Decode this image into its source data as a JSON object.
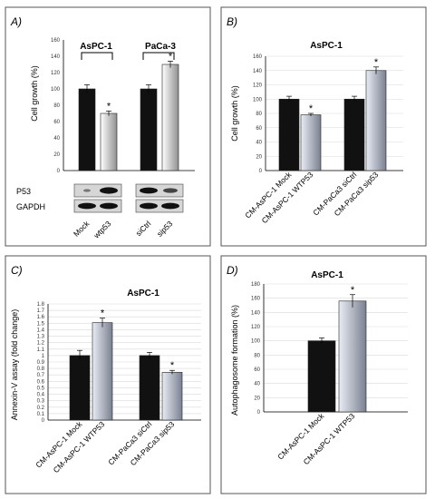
{
  "panels": {
    "a": {
      "label": "A)"
    },
    "b": {
      "label": "B)"
    },
    "c": {
      "label": "C)"
    },
    "d": {
      "label": "D)"
    }
  },
  "chart_data": [
    {
      "type": "bar",
      "panel": "A)",
      "ylabel": "Cell growth (%)",
      "ylim": [
        0,
        160
      ],
      "yticks": [
        0,
        20,
        40,
        60,
        80,
        100,
        120,
        140,
        160
      ],
      "groups": [
        {
          "label": "AsPC-1"
        },
        {
          "label": "PaCa-3"
        }
      ],
      "categories": [
        "Mock",
        "wtp53",
        "siCtrl",
        "sip53"
      ],
      "values": [
        100,
        70,
        100,
        130
      ],
      "errors": [
        5,
        3,
        5,
        4
      ],
      "significance": [
        "",
        "*",
        "",
        "*"
      ],
      "bar_colors": [
        "#111111",
        "gradient",
        "#111111",
        "gradient"
      ],
      "blot_labels": [
        "P53",
        "GAPDH"
      ],
      "grid": false
    },
    {
      "type": "bar",
      "panel": "B)",
      "title": "AsPC-1",
      "ylabel": "Cell growth (%)",
      "ylim": [
        0,
        160
      ],
      "yticks": [
        0,
        20,
        40,
        60,
        80,
        100,
        120,
        140,
        160
      ],
      "categories": [
        "CM-AsPC-1 Mock",
        "CM-AsPC-1 WTP53",
        "CM-PaCa3 siCtrl",
        "CM-PaCa3 sip53"
      ],
      "values": [
        100,
        78,
        100,
        140
      ],
      "errors": [
        4,
        2,
        4,
        5
      ],
      "significance": [
        "",
        "*",
        "",
        "*"
      ],
      "bar_colors": [
        "#111111",
        "gradient",
        "#111111",
        "gradient"
      ],
      "grid": true
    },
    {
      "type": "bar",
      "panel": "C)",
      "title": "AsPC-1",
      "ylabel": "Annexin-V assay (fold change)",
      "ylim": [
        0,
        1.8
      ],
      "yticks": [
        0,
        0.1,
        0.2,
        0.3,
        0.4,
        0.5,
        0.6,
        0.7,
        0.8,
        0.9,
        1,
        1.1,
        1.2,
        1.3,
        1.4,
        1.5,
        1.6,
        1.7,
        1.8
      ],
      "ytick_labels": [
        "0",
        "0.1",
        "0.2",
        "0.3",
        "0.4",
        "0.5",
        "0.6",
        "0.7",
        "0.8",
        "0.9",
        "1",
        "1.1",
        "1.2",
        "1.3",
        "1.4",
        "1.5",
        "1.6",
        "1.7",
        "1.8"
      ],
      "categories": [
        "CM-AsPC-1 Mock",
        "CM-AsPC-1 WTP53",
        "CM-PaCa3 siCtrl",
        "CM-PaCa3 sip53"
      ],
      "values": [
        1.0,
        1.51,
        1.0,
        0.74
      ],
      "errors": [
        0.08,
        0.07,
        0.05,
        0.03
      ],
      "significance": [
        "",
        "*",
        "",
        "*"
      ],
      "bar_colors": [
        "#111111",
        "gradient",
        "#111111",
        "gradient"
      ],
      "grid": true
    },
    {
      "type": "bar",
      "panel": "D)",
      "title": "AsPC-1",
      "ylabel": "Autophagosome formation (%)",
      "ylim": [
        0,
        180
      ],
      "yticks": [
        0,
        20,
        40,
        60,
        80,
        100,
        120,
        140,
        160,
        180
      ],
      "categories": [
        "CM-AsPC-1 Mock",
        "CM-AsPC-1 WTP53"
      ],
      "values": [
        100,
        156
      ],
      "errors": [
        4,
        9
      ],
      "significance": [
        "",
        "*"
      ],
      "bar_colors": [
        "#111111",
        "gradient"
      ],
      "grid": true
    }
  ]
}
